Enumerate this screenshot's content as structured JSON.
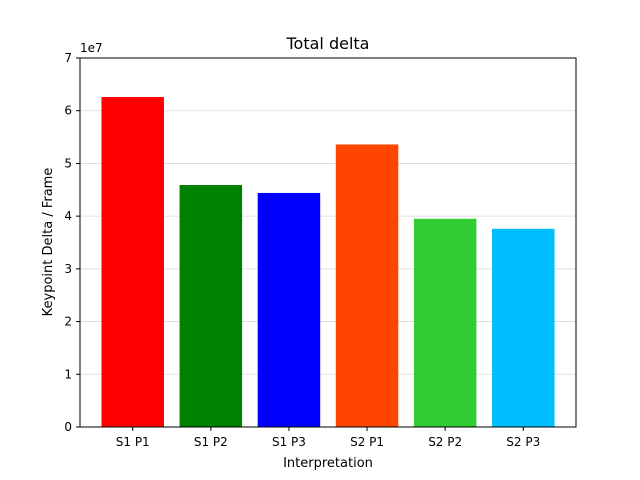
{
  "chart_data": {
    "type": "bar",
    "title": "Total delta",
    "xlabel": "Interpretation",
    "ylabel": "Keypoint Delta / Frame",
    "y_offset_label": "1e7",
    "categories": [
      "S1 P1",
      "S1 P2",
      "S1 P3",
      "S2 P1",
      "S2 P2",
      "S2 P3"
    ],
    "values": [
      62600000,
      45900000,
      44400000,
      53600000,
      39500000,
      37600000
    ],
    "colors": [
      "#ff0000",
      "#008000",
      "#0000ff",
      "#ff4500",
      "#32cd32",
      "#00bfff"
    ],
    "ylim": [
      0,
      70000000
    ],
    "yticks": [
      0,
      10000000,
      20000000,
      30000000,
      40000000,
      50000000,
      60000000,
      70000000
    ],
    "ytick_labels": [
      "0",
      "1",
      "2",
      "3",
      "4",
      "5",
      "6",
      "7"
    ],
    "grid": "horizontal",
    "legend": "none"
  }
}
